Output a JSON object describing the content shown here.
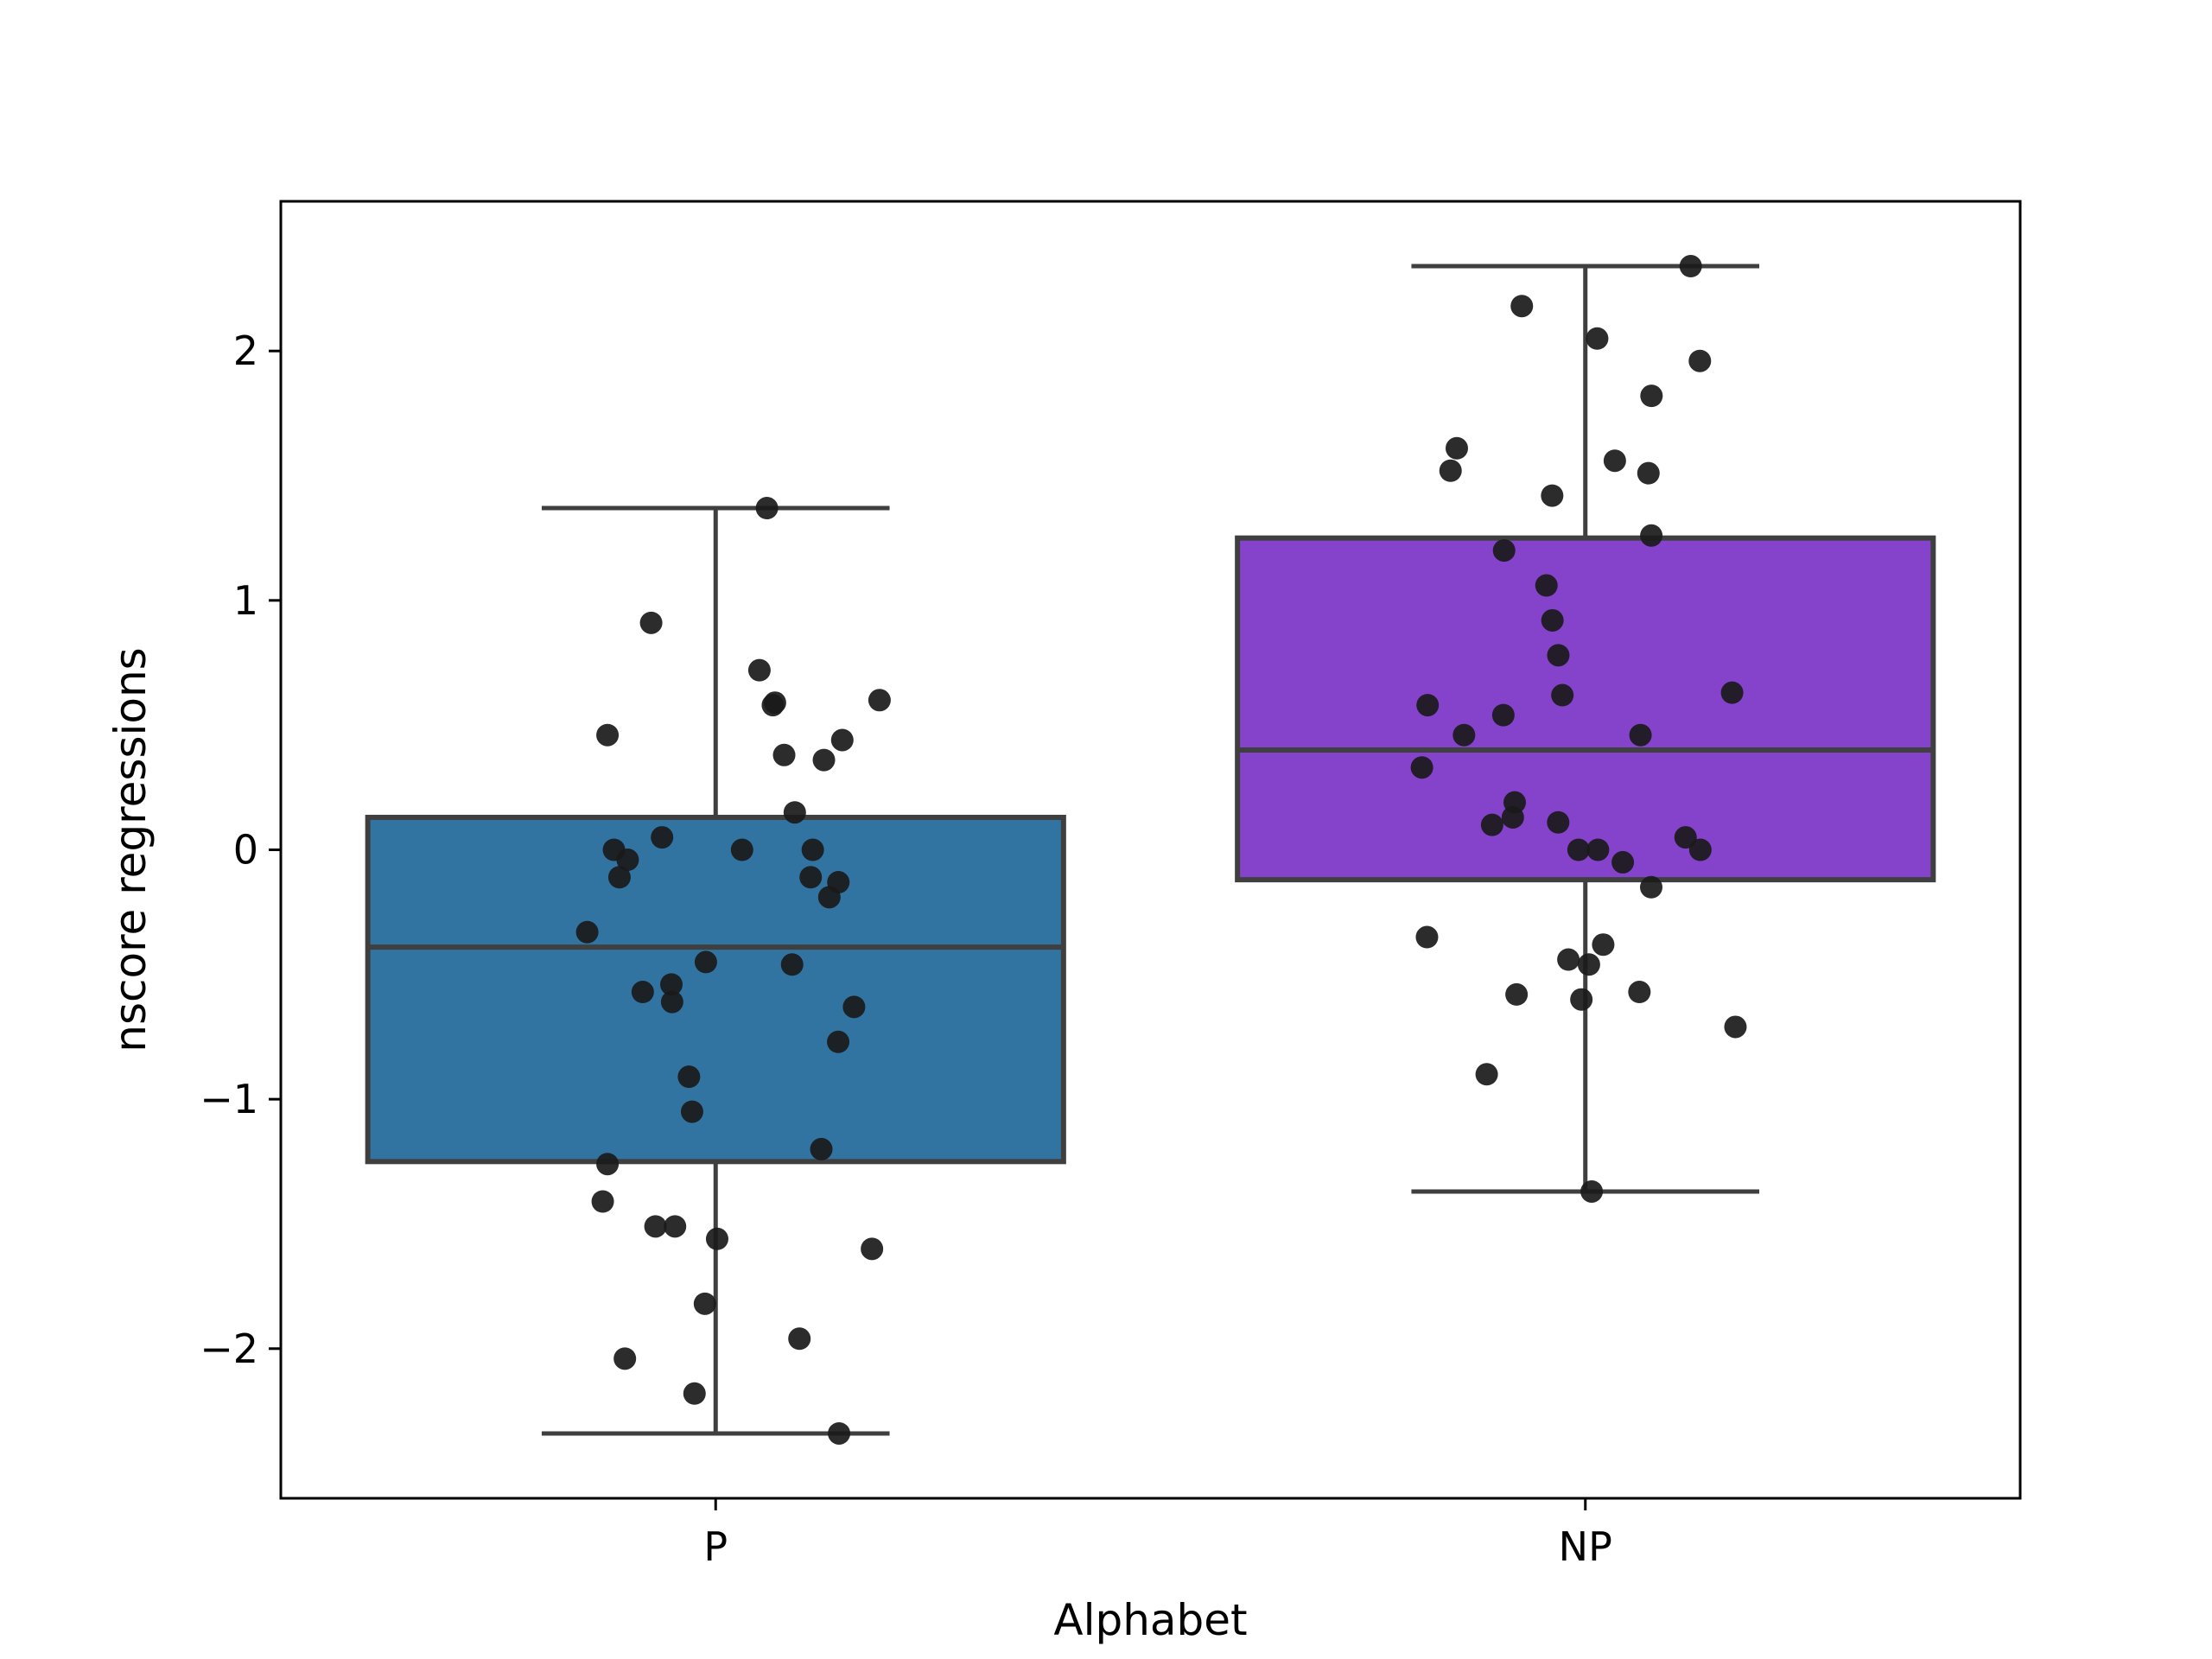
{
  "chart_data": {
    "type": "box",
    "xlabel": "Alphabet",
    "ylabel": "nscore regressions",
    "categories": [
      "P",
      "NP"
    ],
    "ylim": [
      -2.6,
      2.6
    ],
    "yticks": [
      -2,
      -1,
      0,
      1,
      2
    ],
    "ytick_labels": [
      "−2",
      "−1",
      "0",
      "1",
      "2"
    ],
    "grid": false,
    "legend": "none",
    "colors": {
      "P": "#3274a1",
      "NP": "#8543cc",
      "edge": "#3f3f3f",
      "points": "#1a1a1a"
    },
    "boxes": [
      {
        "category": "P",
        "whisker_low": -2.34,
        "q1": -1.25,
        "median": -0.39,
        "q3": 0.13,
        "whisker_high": 1.37
      },
      {
        "category": "NP",
        "whisker_low": -1.37,
        "q1": -0.12,
        "median": 0.4,
        "q3": 1.25,
        "whisker_high": 2.34
      }
    ],
    "points": [
      {
        "category": "P",
        "values": [
          1.37,
          0.91,
          0.72,
          0.6,
          0.59,
          0.58,
          0.46,
          0.44,
          0.38,
          0.36,
          0.15,
          0.05,
          0.0,
          0.0,
          0.0,
          -0.04,
          -0.11,
          -0.11,
          -0.13,
          -0.19,
          -0.33,
          -0.45,
          -0.46,
          -0.54,
          -0.57,
          -0.61,
          -0.63,
          -0.77,
          -0.91,
          -1.05,
          -1.2,
          -1.26,
          -1.41,
          -1.51,
          -1.51,
          -1.56,
          -1.6,
          -1.82,
          -1.96,
          -2.04,
          -2.18,
          -2.34
        ]
      },
      {
        "category": "NP",
        "values": [
          2.34,
          2.18,
          2.05,
          1.96,
          1.82,
          1.61,
          1.56,
          1.52,
          1.51,
          1.42,
          1.26,
          1.2,
          1.06,
          0.92,
          0.78,
          0.63,
          0.62,
          0.58,
          0.54,
          0.46,
          0.46,
          0.33,
          0.19,
          0.13,
          0.11,
          0.1,
          0.05,
          0.0,
          0.0,
          0.0,
          -0.05,
          -0.15,
          -0.35,
          -0.38,
          -0.44,
          -0.46,
          -0.57,
          -0.58,
          -0.6,
          -0.71,
          -0.9,
          -1.37
        ]
      }
    ]
  }
}
